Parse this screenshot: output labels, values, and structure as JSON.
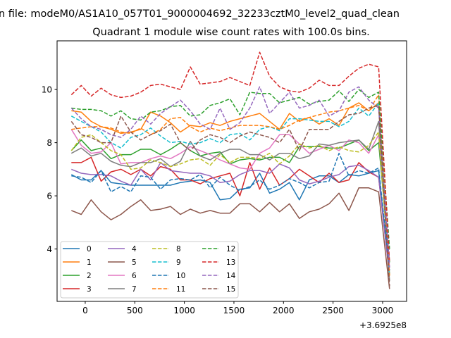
{
  "chart_data": {
    "type": "line",
    "suptitle": "n file: modeM0/AS1A10_057T01_9000004692_32233cztM0_level2_quad_clean",
    "title": "Quadrant 1 module wise count rates with 100.0s bins.",
    "xlabel": "",
    "ylabel": "",
    "x_offset_label": "+3.6925e8",
    "xlim": [
      -284,
      3242
    ],
    "ylim": [
      2.03,
      11.83
    ],
    "xticks": [
      0,
      500,
      1000,
      1500,
      2000,
      2500,
      3000
    ],
    "xtick_labels": [
      "0",
      "500",
      "1000",
      "1500",
      "2000",
      "2500",
      "3000"
    ],
    "yticks": [
      4,
      6,
      8,
      10
    ],
    "ytick_labels": [
      "4",
      "6",
      "8",
      "10"
    ],
    "grid": false,
    "legend_placement": "lower-left",
    "x": [
      -140,
      -40,
      60,
      160,
      260,
      360,
      460,
      560,
      660,
      760,
      860,
      960,
      1060,
      1160,
      1260,
      1360,
      1460,
      1560,
      1660,
      1760,
      1860,
      1960,
      2060,
      2160,
      2260,
      2360,
      2460,
      2560,
      2660,
      2760,
      2860,
      2960,
      3070
    ],
    "series": [
      {
        "name": "0",
        "color": "#1f77b4",
        "dashed": false,
        "values": [
          6.8,
          6.6,
          6.6,
          6.95,
          6.5,
          6.45,
          6.4,
          6.4,
          6.4,
          6.4,
          6.4,
          6.5,
          6.55,
          6.6,
          6.5,
          5.85,
          5.9,
          6.25,
          6.3,
          6.85,
          6.1,
          6.25,
          6.5,
          5.85,
          6.6,
          6.75,
          6.75,
          6.5,
          6.8,
          6.75,
          6.85,
          6.95,
          3.0
        ]
      },
      {
        "name": "1",
        "color": "#ff7f0e",
        "dashed": false,
        "values": [
          9.2,
          9.15,
          8.8,
          8.6,
          8.5,
          8.35,
          8.4,
          8.5,
          9.15,
          9.0,
          8.75,
          8.4,
          8.65,
          8.6,
          8.75,
          8.65,
          8.8,
          8.9,
          9.0,
          9.1,
          8.8,
          8.5,
          9.1,
          8.8,
          8.95,
          8.7,
          8.9,
          8.65,
          9.3,
          9.5,
          9.2,
          9.5,
          3.0
        ]
      },
      {
        "name": "2",
        "color": "#2ca02c",
        "dashed": false,
        "values": [
          7.7,
          8.1,
          7.7,
          7.8,
          7.4,
          7.55,
          7.55,
          7.75,
          7.75,
          7.55,
          7.75,
          8.0,
          7.7,
          7.5,
          7.6,
          7.65,
          7.2,
          7.35,
          7.4,
          7.35,
          7.45,
          7.45,
          7.25,
          7.85,
          7.85,
          7.85,
          7.8,
          7.8,
          7.95,
          8.1,
          7.7,
          8.0,
          3.5
        ]
      },
      {
        "name": "3",
        "color": "#d62728",
        "dashed": false,
        "values": [
          7.25,
          7.25,
          7.45,
          6.55,
          6.9,
          7.0,
          6.8,
          7.0,
          6.75,
          7.1,
          7.0,
          6.6,
          6.6,
          6.45,
          6.65,
          6.75,
          6.85,
          6.0,
          7.25,
          6.25,
          7.05,
          6.4,
          6.65,
          7.0,
          6.75,
          6.5,
          6.85,
          6.5,
          6.6,
          7.25,
          6.9,
          6.7,
          3.0
        ]
      },
      {
        "name": "4",
        "color": "#9467bd",
        "dashed": false,
        "values": [
          7.0,
          6.85,
          6.8,
          6.8,
          6.75,
          6.55,
          6.4,
          7.0,
          6.6,
          7.25,
          6.95,
          6.9,
          6.85,
          6.85,
          6.75,
          6.5,
          6.55,
          6.8,
          6.95,
          6.95,
          6.85,
          7.2,
          7.05,
          6.6,
          6.45,
          6.55,
          6.7,
          6.8,
          7.1,
          7.15,
          6.95,
          6.7,
          3.0
        ]
      },
      {
        "name": "5",
        "color": "#8c564b",
        "dashed": false,
        "values": [
          5.45,
          5.3,
          5.85,
          5.4,
          5.1,
          5.3,
          5.6,
          5.85,
          5.45,
          5.5,
          5.6,
          5.3,
          5.5,
          5.35,
          5.45,
          5.35,
          5.35,
          5.7,
          5.7,
          5.4,
          5.75,
          5.4,
          5.7,
          5.15,
          5.4,
          5.5,
          5.7,
          6.1,
          5.45,
          6.3,
          6.3,
          6.15,
          2.5
        ]
      },
      {
        "name": "6",
        "color": "#e377c2",
        "dashed": false,
        "values": [
          8.5,
          7.9,
          7.6,
          7.65,
          8.0,
          7.2,
          7.25,
          7.25,
          7.4,
          7.5,
          7.4,
          7.6,
          7.85,
          7.7,
          7.55,
          7.35,
          7.2,
          7.05,
          7.0,
          7.6,
          7.8,
          8.3,
          8.3,
          7.95,
          7.6,
          7.75,
          7.9,
          7.7,
          8.1,
          8.0,
          7.6,
          8.3,
          3.3
        ]
      },
      {
        "name": "7",
        "color": "#7f7f7f",
        "dashed": false,
        "values": [
          7.6,
          7.8,
          7.5,
          7.6,
          7.3,
          7.15,
          7.1,
          7.25,
          7.25,
          7.4,
          7.1,
          7.3,
          8.05,
          7.5,
          7.35,
          7.6,
          7.75,
          7.75,
          7.55,
          7.55,
          7.35,
          7.6,
          7.6,
          7.4,
          7.5,
          7.95,
          7.9,
          8.0,
          8.05,
          8.1,
          7.75,
          8.8,
          2.8
        ]
      },
      {
        "name": "8",
        "color": "#bcbd22",
        "dashed": true,
        "values": [
          7.7,
          8.2,
          8.3,
          8.0,
          7.7,
          7.55,
          7.0,
          7.05,
          7.35,
          7.25,
          7.1,
          7.2,
          7.35,
          7.4,
          7.15,
          7.55,
          7.25,
          7.45,
          7.45,
          7.4,
          7.6,
          7.2,
          7.5,
          7.95,
          7.8,
          7.9,
          7.7,
          7.85,
          7.7,
          7.65,
          7.9,
          8.4,
          3.0
        ]
      },
      {
        "name": "9",
        "color": "#17becf",
        "dashed": true,
        "values": [
          9.0,
          8.8,
          8.6,
          8.4,
          8.0,
          7.8,
          8.2,
          8.3,
          8.55,
          8.25,
          8.0,
          8.05,
          7.95,
          8.0,
          8.15,
          8.0,
          8.3,
          8.35,
          8.1,
          8.5,
          8.6,
          8.45,
          8.9,
          8.9,
          8.85,
          8.8,
          8.8,
          8.6,
          8.8,
          9.3,
          9.0,
          9.5,
          3.0
        ]
      },
      {
        "name": "10",
        "color": "#1f77b4",
        "dashed": true,
        "values": [
          6.75,
          6.7,
          6.5,
          6.95,
          6.15,
          6.35,
          6.15,
          6.75,
          6.7,
          6.25,
          6.6,
          6.65,
          6.6,
          6.8,
          6.3,
          6.7,
          6.4,
          6.2,
          6.35,
          6.6,
          6.25,
          6.4,
          6.65,
          6.5,
          6.3,
          6.5,
          6.55,
          7.6,
          6.75,
          6.95,
          6.85,
          7.05,
          3.2
        ]
      },
      {
        "name": "11",
        "color": "#ff7f0e",
        "dashed": true,
        "values": [
          8.5,
          8.55,
          8.6,
          8.6,
          8.55,
          8.4,
          8.35,
          8.55,
          8.3,
          8.5,
          8.9,
          8.95,
          8.6,
          8.4,
          8.55,
          8.45,
          8.55,
          8.65,
          8.65,
          8.65,
          8.6,
          8.5,
          8.65,
          8.85,
          8.95,
          9.05,
          9.15,
          9.2,
          9.3,
          9.4,
          9.2,
          9.8,
          3.0
        ]
      },
      {
        "name": "12",
        "color": "#2ca02c",
        "dashed": true,
        "values": [
          9.3,
          9.25,
          9.25,
          9.2,
          9.0,
          9.2,
          8.9,
          8.85,
          9.15,
          9.2,
          9.35,
          9.4,
          9.0,
          9.05,
          9.4,
          9.5,
          9.65,
          9.05,
          9.9,
          9.85,
          9.85,
          9.5,
          9.6,
          9.7,
          9.45,
          9.55,
          9.6,
          9.95,
          9.55,
          10.0,
          9.7,
          9.9,
          4.0
        ]
      },
      {
        "name": "13",
        "color": "#d62728",
        "dashed": true,
        "values": [
          9.8,
          10.15,
          9.75,
          10.05,
          9.8,
          9.7,
          9.75,
          9.9,
          10.15,
          10.2,
          10.1,
          10.0,
          10.85,
          10.2,
          10.25,
          10.3,
          10.45,
          10.3,
          10.15,
          11.4,
          10.5,
          10.1,
          9.95,
          9.9,
          10.05,
          10.35,
          10.15,
          10.15,
          10.5,
          10.8,
          10.95,
          10.85,
          3.5
        ]
      },
      {
        "name": "14",
        "color": "#9467bd",
        "dashed": true,
        "values": [
          9.3,
          8.9,
          8.6,
          8.5,
          8.3,
          8.2,
          8.5,
          9.0,
          8.7,
          9.1,
          9.35,
          9.6,
          9.2,
          8.7,
          8.5,
          9.3,
          8.5,
          8.75,
          9.3,
          10.1,
          9.1,
          9.5,
          9.9,
          9.3,
          9.4,
          9.6,
          9.0,
          9.2,
          9.9,
          10.1,
          9.6,
          9.3,
          3.3
        ]
      },
      {
        "name": "15",
        "color": "#8c564b",
        "dashed": true,
        "values": [
          8.8,
          8.3,
          8.2,
          8.0,
          8.0,
          9.0,
          8.4,
          8.1,
          8.3,
          8.45,
          8.7,
          8.0,
          7.7,
          8.1,
          8.3,
          8.2,
          8.0,
          8.25,
          8.4,
          8.3,
          8.2,
          8.0,
          8.5,
          7.7,
          8.5,
          8.5,
          8.5,
          8.8,
          9.05,
          9.1,
          9.3,
          9.4,
          2.6
        ]
      }
    ]
  }
}
